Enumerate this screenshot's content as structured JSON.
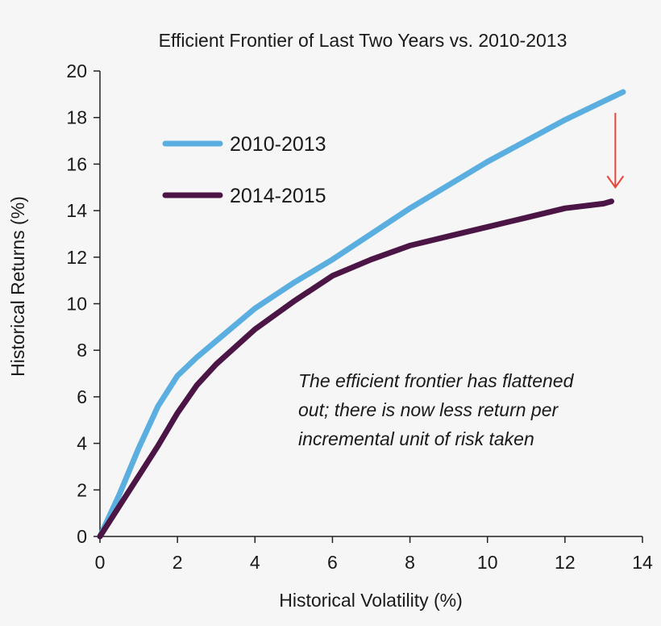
{
  "chart_data": {
    "type": "line",
    "title": "Efficient Frontier of Last Two Years vs. 2010-2013",
    "xlabel": "Historical Volatility (%)",
    "ylabel": "Historical Returns (%)",
    "xlim": [
      0,
      14
    ],
    "ylim": [
      0,
      20
    ],
    "xticks": [
      "0",
      "2",
      "4",
      "6",
      "8",
      "10",
      "12",
      "14"
    ],
    "yticks": [
      "0",
      "2",
      "4",
      "6",
      "8",
      "10",
      "12",
      "14",
      "16",
      "18",
      "20"
    ],
    "grid": false,
    "legend_position": "upper-left",
    "series": [
      {
        "name": "2010-2013",
        "color": "#5aaee0",
        "x": [
          0,
          0.5,
          1,
          1.5,
          2,
          2.5,
          3,
          4,
          5,
          6,
          7,
          8,
          9,
          10,
          11,
          12,
          13,
          13.5
        ],
        "y": [
          0,
          1.8,
          3.8,
          5.6,
          6.9,
          7.7,
          8.4,
          9.8,
          10.9,
          11.9,
          13.0,
          14.1,
          15.1,
          16.1,
          17.0,
          17.9,
          18.7,
          19.1
        ]
      },
      {
        "name": "2014-2015",
        "color": "#4b1545",
        "x": [
          0,
          0.5,
          1,
          1.5,
          2,
          2.5,
          3,
          4,
          5,
          6,
          7,
          8,
          9,
          10,
          11,
          12,
          13,
          13.2
        ],
        "y": [
          0,
          1.3,
          2.6,
          3.9,
          5.3,
          6.5,
          7.4,
          8.9,
          10.1,
          11.2,
          11.9,
          12.5,
          12.9,
          13.3,
          13.7,
          14.1,
          14.3,
          14.4
        ]
      }
    ],
    "annotation": {
      "lines": [
        "The efficient frontier has flattened",
        "out; there is now less return per",
        "incremental unit of risk taken"
      ]
    },
    "arrow": {
      "x": 13.3,
      "y_from": 18.2,
      "y_to": 15.0,
      "color": "#e8453c"
    }
  }
}
